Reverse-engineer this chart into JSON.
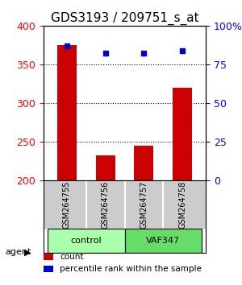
{
  "title": "GDS3193 / 209751_s_at",
  "samples": [
    "GSM264755",
    "GSM264756",
    "GSM264757",
    "GSM264758"
  ],
  "counts": [
    375,
    232,
    245,
    320
  ],
  "percentiles": [
    87,
    82,
    82,
    84
  ],
  "ylim_left": [
    200,
    400
  ],
  "ylim_right": [
    0,
    100
  ],
  "yticks_left": [
    200,
    250,
    300,
    350,
    400
  ],
  "yticks_right": [
    0,
    25,
    50,
    75,
    100
  ],
  "yticklabels_right": [
    "0",
    "25",
    "50",
    "75",
    "100%"
  ],
  "bar_color": "#cc0000",
  "dot_color": "#0000cc",
  "groups": [
    {
      "label": "control",
      "indices": [
        0,
        1
      ],
      "color": "#aaffaa"
    },
    {
      "label": "VAF347",
      "indices": [
        2,
        3
      ],
      "color": "#66dd66"
    }
  ],
  "sample_box_color": "#cccccc",
  "agent_label": "agent",
  "legend_items": [
    {
      "label": "count",
      "color": "#cc0000"
    },
    {
      "label": "percentile rank within the sample",
      "color": "#0000cc"
    }
  ],
  "title_fontsize": 11,
  "tick_fontsize": 9,
  "bar_width": 0.5
}
